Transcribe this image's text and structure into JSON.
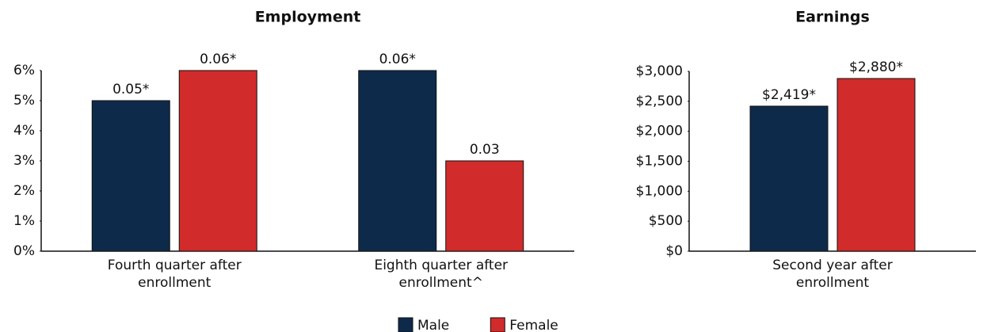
{
  "chart_data": [
    {
      "type": "bar",
      "title": "Employment",
      "categories": [
        "Fourth quarter after enrollment",
        "Eighth quarter after enrollment^"
      ],
      "series": [
        {
          "name": "Male",
          "color": "#0e2a4a",
          "values": [
            5,
            6
          ],
          "value_labels": [
            "0.05*",
            "0.06*"
          ]
        },
        {
          "name": "Female",
          "color": "#d22b2b",
          "values": [
            6,
            3
          ],
          "value_labels": [
            "0.06*",
            "0.03"
          ]
        }
      ],
      "ylim": [
        0,
        6
      ],
      "yticks": [
        {
          "value": 0,
          "label": "0%"
        },
        {
          "value": 1,
          "label": "1%"
        },
        {
          "value": 2,
          "label": "2%"
        },
        {
          "value": 3,
          "label": "3%"
        },
        {
          "value": 4,
          "label": "4%"
        },
        {
          "value": 5,
          "label": "5%"
        },
        {
          "value": 6,
          "label": "6%"
        }
      ],
      "legend": "bottom"
    },
    {
      "type": "bar",
      "title": "Earnings",
      "categories": [
        "Second year after enrollment"
      ],
      "series": [
        {
          "color": "#0e2a4a",
          "values": [
            2419
          ],
          "value_labels": [
            "$2,419*"
          ]
        },
        {
          "color": "#d22b2b",
          "values": [
            2880
          ],
          "value_labels": [
            "$2,880*"
          ]
        }
      ],
      "ylim": [
        0,
        3000
      ],
      "yticks": [
        {
          "value": 0,
          "label": "$0"
        },
        {
          "value": 500,
          "label": "$500"
        },
        {
          "value": 1000,
          "label": "$1,000"
        },
        {
          "value": 1500,
          "label": "$1,500"
        },
        {
          "value": 2000,
          "label": "$2,000"
        },
        {
          "value": 2500,
          "label": "$2,500"
        },
        {
          "value": 3000,
          "label": "$3,000"
        }
      ]
    }
  ]
}
